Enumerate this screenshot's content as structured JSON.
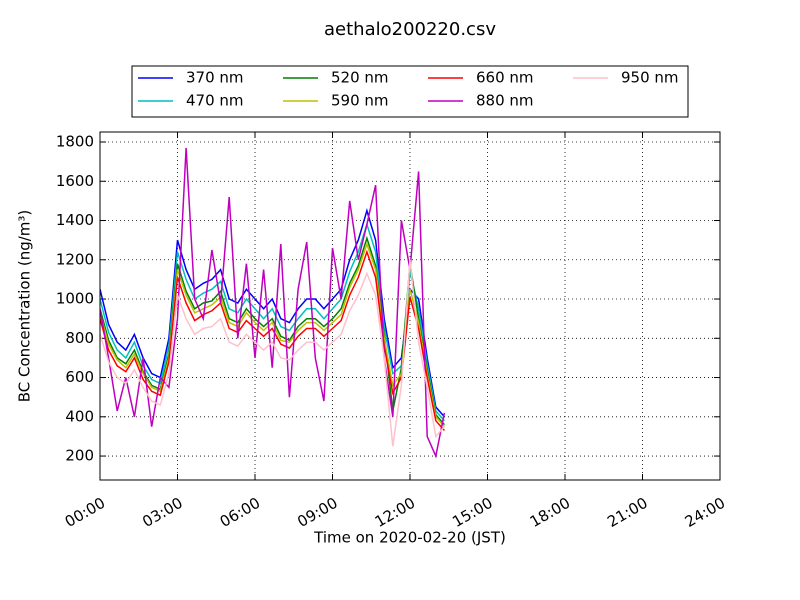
{
  "chart_data": {
    "type": "line",
    "title": "aethalo200220.csv",
    "xlabel": "Time on 2020-02-20 (JST)",
    "ylabel": "BC Concentration (ng/m³)",
    "x": [
      "00:00",
      "00:20",
      "00:40",
      "01:00",
      "01:20",
      "01:40",
      "02:00",
      "02:20",
      "02:40",
      "03:00",
      "03:20",
      "03:40",
      "04:00",
      "04:20",
      "04:40",
      "05:00",
      "05:20",
      "05:40",
      "06:00",
      "06:20",
      "06:40",
      "07:00",
      "07:20",
      "07:40",
      "08:00",
      "08:20",
      "08:40",
      "09:00",
      "09:20",
      "09:40",
      "10:00",
      "10:20",
      "10:40",
      "11:00",
      "11:20",
      "11:40",
      "12:00",
      "12:20",
      "12:40",
      "13:00",
      "13:20"
    ],
    "series": [
      {
        "name": "370 nm",
        "color": "#0000ff",
        "values": [
          1050,
          870,
          780,
          740,
          820,
          700,
          620,
          600,
          800,
          1300,
          1150,
          1050,
          1080,
          1100,
          1150,
          1000,
          980,
          1050,
          1000,
          950,
          1000,
          900,
          880,
          950,
          1000,
          1000,
          950,
          1000,
          1050,
          1200,
          1300,
          1450,
          1300,
          900,
          650,
          700,
          1050,
          1000,
          700,
          450,
          400
        ]
      },
      {
        "name": "470 nm",
        "color": "#00bfbf",
        "values": [
          1000,
          830,
          740,
          700,
          780,
          660,
          590,
          570,
          760,
          1240,
          1100,
          1000,
          1030,
          1050,
          1090,
          950,
          930,
          1000,
          950,
          900,
          950,
          860,
          840,
          900,
          950,
          950,
          900,
          950,
          1000,
          1140,
          1240,
          1380,
          1240,
          860,
          620,
          660,
          1140,
          950,
          670,
          430,
          380
        ]
      },
      {
        "name": "520 nm",
        "color": "#008000",
        "values": [
          950,
          790,
          700,
          670,
          740,
          630,
          560,
          540,
          720,
          1180,
          1040,
          950,
          980,
          990,
          1040,
          900,
          880,
          950,
          900,
          860,
          900,
          810,
          790,
          860,
          900,
          900,
          860,
          900,
          950,
          1080,
          1170,
          1310,
          1170,
          820,
          430,
          650,
          1180,
          900,
          640,
          410,
          360
        ]
      },
      {
        "name": "590 nm",
        "color": "#bfbf00",
        "values": [
          930,
          770,
          690,
          650,
          720,
          620,
          550,
          530,
          700,
          1150,
          1020,
          930,
          950,
          970,
          1010,
          880,
          860,
          930,
          880,
          840,
          880,
          790,
          780,
          840,
          880,
          880,
          840,
          880,
          920,
          1060,
          1150,
          1280,
          1150,
          800,
          560,
          620,
          1050,
          880,
          620,
          400,
          350
        ]
      },
      {
        "name": "660 nm",
        "color": "#ff0000",
        "values": [
          900,
          740,
          660,
          630,
          700,
          590,
          530,
          510,
          680,
          1110,
          980,
          890,
          920,
          940,
          980,
          850,
          830,
          890,
          850,
          810,
          850,
          770,
          750,
          810,
          850,
          850,
          810,
          850,
          890,
          1020,
          1110,
          1240,
          1110,
          760,
          520,
          600,
          1010,
          850,
          600,
          380,
          330
        ]
      },
      {
        "name": "880 nm",
        "color": "#bf00bf",
        "values": [
          950,
          700,
          430,
          600,
          400,
          700,
          350,
          600,
          550,
          900,
          1770,
          1000,
          900,
          1250,
          980,
          1520,
          800,
          1180,
          700,
          1150,
          650,
          1280,
          500,
          1050,
          1290,
          700,
          480,
          1260,
          1000,
          1500,
          1200,
          1380,
          1580,
          700,
          400,
          1400,
          1150,
          1650,
          300,
          200,
          420
        ]
      },
      {
        "name": "950 nm",
        "color": "#ffc0cb",
        "values": [
          820,
          680,
          600,
          570,
          640,
          550,
          480,
          460,
          620,
          1020,
          900,
          820,
          850,
          860,
          900,
          780,
          760,
          820,
          780,
          740,
          780,
          700,
          690,
          740,
          780,
          780,
          740,
          780,
          820,
          940,
          1020,
          1130,
          1020,
          700,
          250,
          560,
          1200,
          780,
          550,
          300,
          350
        ]
      }
    ],
    "xlim": [
      "00:00",
      "24:00"
    ],
    "xticks": [
      "00:00",
      "03:00",
      "06:00",
      "09:00",
      "12:00",
      "15:00",
      "18:00",
      "21:00",
      "24:00"
    ],
    "ylim": [
      78,
      1851
    ],
    "yticks": [
      200,
      400,
      600,
      800,
      1000,
      1200,
      1400,
      1600,
      1800
    ],
    "grid": true,
    "legend": "upper center"
  }
}
